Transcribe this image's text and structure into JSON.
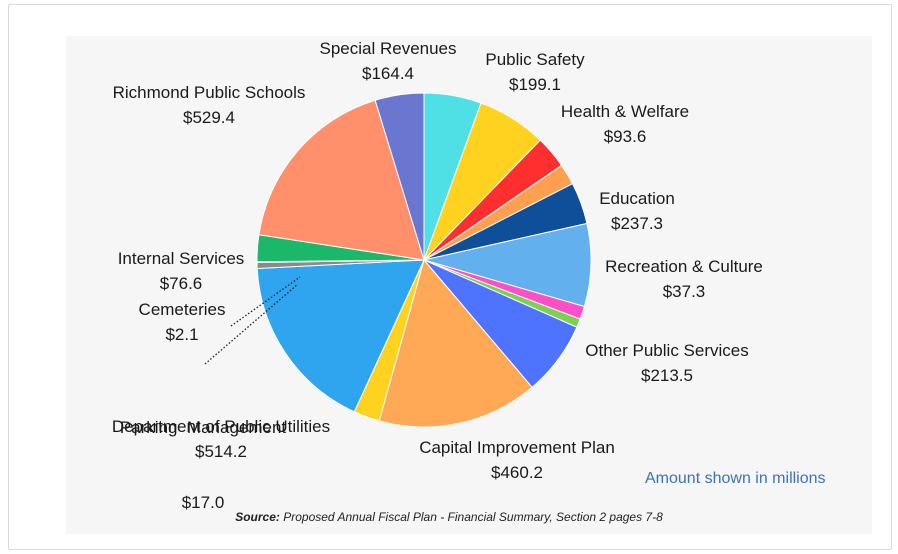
{
  "chart_data": {
    "type": "pie",
    "slices": [
      {
        "label": "Special Revenues",
        "value": "$164.4",
        "amount": 164.4,
        "color": "#4fe0e6"
      },
      {
        "label": "Public Safety",
        "value": "$199.1",
        "amount": 199.1,
        "color": "#ffd21f"
      },
      {
        "label": "Health & Welfare",
        "value": "$93.6",
        "amount": 93.6,
        "color": "#ff2f2f"
      },
      {
        "label": "",
        "value": "",
        "amount": 60,
        "color": "#ffa050"
      },
      {
        "label": "",
        "value": "",
        "amount": 120,
        "color": "#0f4f9a"
      },
      {
        "label": "Education",
        "value": "$237.3",
        "amount": 237.3,
        "color": "#63b0ee"
      },
      {
        "label": "Recreation & Culture",
        "value": "$37.3",
        "amount": 37.3,
        "color": "#ff4fc8"
      },
      {
        "label": "",
        "value": "",
        "amount": 25,
        "color": "#7fd04f"
      },
      {
        "label": "Other Public Services",
        "value": "$213.5",
        "amount": 213.5,
        "color": "#4d73ff"
      },
      {
        "label": "Capital Improvement Plan",
        "value": "$460.2",
        "amount": 460.2,
        "color": "#ffa855"
      },
      {
        "label": "",
        "value": "",
        "amount": 75,
        "color": "#ffd21f"
      },
      {
        "label": "Department of Public Utilities",
        "value": "$514.2",
        "amount": 514.2,
        "color": "#2fa4ef"
      },
      {
        "label": "Parking  Management",
        "value": "$17.0",
        "amount": 17.0,
        "color": "#8a8a8a"
      },
      {
        "label": "Cemeteries",
        "value": "$2.1",
        "amount": 2.1,
        "color": "#1f3c78"
      },
      {
        "label": "Internal Services",
        "value": "$76.6",
        "amount": 76.6,
        "color": "#1bb86a"
      },
      {
        "label": "Richmond Public Schools",
        "value": "$529.4",
        "amount": 529.4,
        "color": "#ff906b"
      },
      {
        "label": "",
        "value": "",
        "amount": 140,
        "color": "#6a76d0"
      }
    ]
  },
  "labels": {
    "special_revenues": {
      "name": "Special Revenues",
      "value": "$164.4"
    },
    "public_safety": {
      "name": "Public Safety",
      "value": "$199.1"
    },
    "health_welfare": {
      "name": "Health & Welfare",
      "value": "$93.6"
    },
    "education": {
      "name": "Education",
      "value": "$237.3"
    },
    "recreation_culture": {
      "name": "Recreation & Culture",
      "value": "$37.3"
    },
    "other_public_services": {
      "name": "Other Public Services",
      "value": "$213.5"
    },
    "capital_improvement": {
      "name": "Capital Improvement Plan",
      "value": "$460.2"
    },
    "public_utilities": {
      "name": "Department of Public Utilities",
      "value": "$514.2"
    },
    "parking": {
      "name": "Parking  Management",
      "value": "$17.0"
    },
    "cemeteries": {
      "name": "Cemeteries",
      "value": "$2.1"
    },
    "internal_services": {
      "name": "Internal Services",
      "value": "$76.6"
    },
    "richmond_schools": {
      "name": "Richmond Public Schools",
      "value": "$529.4"
    }
  },
  "note": "Amount shown in millions",
  "source": {
    "prefix": "Source:",
    "text": " Proposed Annual Fiscal Plan - Financial Summary, Section 2 pages 7-8"
  }
}
